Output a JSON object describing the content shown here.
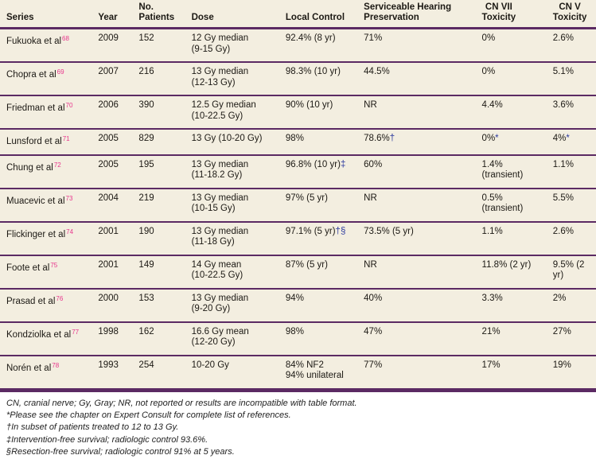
{
  "colors": {
    "table_bg": "#f3eee0",
    "divider": "#5b2a63",
    "reference_pink": "#e8358c",
    "marker_blue": "#2c3a9e"
  },
  "table": {
    "columns": [
      {
        "label": "Series"
      },
      {
        "label": "Year"
      },
      {
        "label": "No.\nPatients"
      },
      {
        "label": "Dose"
      },
      {
        "label": "Local Control"
      },
      {
        "label": "Serviceable Hearing\nPreservation"
      },
      {
        "label": "CN VII\nToxicity"
      },
      {
        "label": "CN V\nToxicity"
      }
    ],
    "rows": [
      {
        "series": "Fukuoka et al",
        "ref": "68",
        "year": "2009",
        "patients": "152",
        "dose": {
          "lines": [
            "12 Gy median",
            "(9-15 Gy)"
          ]
        },
        "local": {
          "lines": [
            "92.4% (8 yr)"
          ]
        },
        "hearing": {
          "lines": [
            "71%"
          ]
        },
        "cn7": {
          "lines": [
            "0%"
          ]
        },
        "cn5": {
          "lines": [
            "2.6%"
          ]
        }
      },
      {
        "series": "Chopra et al",
        "ref": "69",
        "year": "2007",
        "patients": "216",
        "dose": {
          "lines": [
            "13 Gy median",
            "(12-13 Gy)"
          ]
        },
        "local": {
          "lines": [
            "98.3% (10 yr)"
          ]
        },
        "hearing": {
          "lines": [
            "44.5%"
          ]
        },
        "cn7": {
          "lines": [
            "0%"
          ]
        },
        "cn5": {
          "lines": [
            "5.1%"
          ]
        }
      },
      {
        "series": "Friedman et al",
        "ref": "70",
        "year": "2006",
        "patients": "390",
        "dose": {
          "lines": [
            "12.5 Gy median",
            "(10-22.5 Gy)"
          ]
        },
        "local": {
          "lines": [
            "90% (10 yr)"
          ]
        },
        "hearing": {
          "lines": [
            "NR"
          ]
        },
        "cn7": {
          "lines": [
            "4.4%"
          ]
        },
        "cn5": {
          "lines": [
            "3.6%"
          ]
        }
      },
      {
        "series": "Lunsford et al",
        "ref": "71",
        "year": "2005",
        "patients": "829",
        "dose": {
          "lines": [
            "13 Gy (10-20 Gy)"
          ]
        },
        "local": {
          "lines": [
            "98%"
          ]
        },
        "hearing": {
          "lines": [
            "78.6%"
          ],
          "marker": "†"
        },
        "cn7": {
          "lines": [
            "0%"
          ],
          "marker": "*"
        },
        "cn5": {
          "lines": [
            "4%"
          ],
          "marker": "*"
        }
      },
      {
        "series": "Chung et al",
        "ref": "72",
        "year": "2005",
        "patients": "195",
        "dose": {
          "lines": [
            "13 Gy median",
            "(11-18.2 Gy)"
          ]
        },
        "local": {
          "lines": [
            "96.8% (10 yr)"
          ],
          "marker": "‡"
        },
        "hearing": {
          "lines": [
            "60%"
          ]
        },
        "cn7": {
          "lines": [
            "1.4%",
            "(transient)"
          ]
        },
        "cn5": {
          "lines": [
            "1.1%"
          ]
        }
      },
      {
        "series": "Muacevic et al",
        "ref": "73",
        "year": "2004",
        "patients": "219",
        "dose": {
          "lines": [
            "13 Gy median",
            "(10-15 Gy)"
          ]
        },
        "local": {
          "lines": [
            "97% (5 yr)"
          ]
        },
        "hearing": {
          "lines": [
            "NR"
          ]
        },
        "cn7": {
          "lines": [
            "0.5%",
            "(transient)"
          ]
        },
        "cn5": {
          "lines": [
            "5.5%"
          ]
        }
      },
      {
        "series": "Flickinger et al",
        "ref": "74",
        "year": "2001",
        "patients": "190",
        "dose": {
          "lines": [
            "13 Gy median",
            "(11-18 Gy)"
          ]
        },
        "local": {
          "lines": [
            "97.1% (5 yr)"
          ],
          "marker": "†§"
        },
        "hearing": {
          "lines": [
            "73.5% (5 yr)"
          ]
        },
        "cn7": {
          "lines": [
            "1.1%"
          ]
        },
        "cn5": {
          "lines": [
            "2.6%"
          ]
        }
      },
      {
        "series": "Foote et al",
        "ref": "75",
        "year": "2001",
        "patients": "149",
        "dose": {
          "lines": [
            "14 Gy mean",
            "(10-22.5 Gy)"
          ]
        },
        "local": {
          "lines": [
            "87% (5 yr)"
          ]
        },
        "hearing": {
          "lines": [
            "NR"
          ]
        },
        "cn7": {
          "lines": [
            "11.8% (2 yr)"
          ]
        },
        "cn5": {
          "lines": [
            "9.5% (2 yr)"
          ]
        }
      },
      {
        "series": "Prasad et al",
        "ref": "76",
        "year": "2000",
        "patients": "153",
        "dose": {
          "lines": [
            "13 Gy median",
            "(9-20 Gy)"
          ]
        },
        "local": {
          "lines": [
            "94%"
          ]
        },
        "hearing": {
          "lines": [
            "40%"
          ]
        },
        "cn7": {
          "lines": [
            "3.3%"
          ]
        },
        "cn5": {
          "lines": [
            "2%"
          ]
        }
      },
      {
        "series": "Kondziolka et al",
        "ref": "77",
        "year": "1998",
        "patients": "162",
        "dose": {
          "lines": [
            "16.6 Gy mean",
            "(12-20 Gy)"
          ]
        },
        "local": {
          "lines": [
            "98%"
          ]
        },
        "hearing": {
          "lines": [
            "47%"
          ]
        },
        "cn7": {
          "lines": [
            "21%"
          ]
        },
        "cn5": {
          "lines": [
            "27%"
          ]
        }
      },
      {
        "series": "Norén et al",
        "ref": "78",
        "year": "1993",
        "patients": "254",
        "dose": {
          "lines": [
            "10-20 Gy"
          ]
        },
        "local": {
          "lines": [
            "84% NF2",
            "94% unilateral"
          ]
        },
        "hearing": {
          "lines": [
            "77%"
          ]
        },
        "cn7": {
          "lines": [
            "17%"
          ]
        },
        "cn5": {
          "lines": [
            "19%"
          ]
        }
      }
    ]
  },
  "footnotes": [
    "CN, cranial nerve; Gy, Gray; NR, not reported or results are incompatible with table format.",
    "*Please see the chapter on Expert Consult for complete list of references.",
    "†In subset of patients treated to 12 to 13 Gy.",
    "‡Intervention-free survival; radiologic control 93.6%.",
    "§Resection-free survival; radiologic control 91% at 5 years."
  ]
}
